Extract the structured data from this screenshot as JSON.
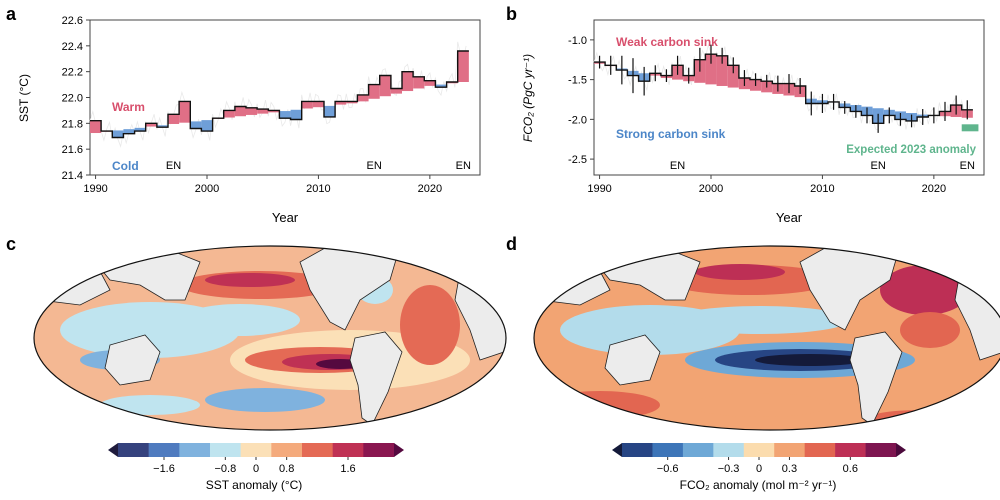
{
  "colors": {
    "warm": "#e06f86",
    "cold": "#6f9fd8",
    "step": "#111111",
    "noise": "#e9e9e9",
    "warm_text": "#d84f6c",
    "cold_text": "#4c86c8",
    "expected": "#5fb58d",
    "land": "#ececec",
    "ocean_blank": "#ffffff",
    "sst_colorbar": [
      "#1f1b3d",
      "#35427e",
      "#4f7bbf",
      "#7fb2de",
      "#bfe4ef",
      "#fbe0b7",
      "#f4aa7c",
      "#e46a55",
      "#bf3154",
      "#8a1650",
      "#55093f"
    ],
    "fco2_colorbar": [
      "#141a3a",
      "#274584",
      "#3d75b8",
      "#6ea8d6",
      "#b3dceb",
      "#fbdcae",
      "#f2a473",
      "#e26651",
      "#bd2f55",
      "#7e1550",
      "#4b0a3c"
    ]
  },
  "chart_data": [
    {
      "panel": "a",
      "type": "bar",
      "ylabel": "SST (°C)",
      "xlabel": "Year",
      "ylim": [
        21.4,
        22.6
      ],
      "yticks": [
        "21.4",
        "21.6",
        "21.8",
        "22.0",
        "22.2",
        "22.4",
        "22.6"
      ],
      "xlim": [
        1989.5,
        2024.5
      ],
      "xticks": [
        "1990",
        "2000",
        "2010",
        "2020"
      ],
      "annotations": {
        "warm": "Warm",
        "cold": "Cold",
        "el_nino": "EN",
        "el_nino_years": [
          1997,
          2015,
          2023
        ]
      },
      "x": [
        1990,
        1991,
        1992,
        1993,
        1994,
        1995,
        1996,
        1997,
        1998,
        1999,
        2000,
        2001,
        2002,
        2003,
        2004,
        2005,
        2006,
        2007,
        2008,
        2009,
        2010,
        2011,
        2012,
        2013,
        2014,
        2015,
        2016,
        2017,
        2018,
        2019,
        2020,
        2021,
        2022,
        2023
      ],
      "values": [
        21.82,
        21.74,
        21.69,
        21.72,
        21.74,
        21.8,
        21.77,
        21.87,
        21.97,
        21.76,
        21.74,
        21.84,
        21.9,
        21.93,
        21.92,
        21.91,
        21.9,
        21.84,
        21.83,
        21.97,
        21.97,
        21.85,
        21.97,
        21.97,
        22.02,
        22.1,
        22.17,
        22.07,
        22.2,
        22.16,
        22.13,
        22.08,
        22.12,
        22.36
      ],
      "baseline": [
        21.725,
        21.735,
        21.745,
        21.755,
        21.765,
        21.775,
        21.785,
        21.795,
        21.805,
        21.815,
        21.825,
        21.835,
        21.845,
        21.855,
        21.865,
        21.875,
        21.885,
        21.895,
        21.905,
        21.915,
        21.925,
        21.935,
        21.945,
        21.955,
        21.97,
        21.99,
        22.01,
        22.03,
        22.05,
        22.07,
        22.09,
        22.1,
        22.11,
        22.12
      ]
    },
    {
      "panel": "b",
      "type": "bar",
      "ylabel": "FCO₂ (PgC yr⁻¹)",
      "xlabel": "Year",
      "ylim": [
        -2.7,
        -0.75
      ],
      "yticks": [
        "-2.5",
        "-2.0",
        "-1.5",
        "-1.0"
      ],
      "xlim": [
        1989.5,
        2024.5
      ],
      "xticks": [
        "1990",
        "2000",
        "2010",
        "2020"
      ],
      "annotations": {
        "weak": "Weak carbon sink",
        "strong": "Strong carbon sink",
        "expected": "Expected 2023 anomaly",
        "el_nino": "EN",
        "el_nino_years": [
          1997,
          2015,
          2023
        ]
      },
      "x": [
        1990,
        1991,
        1992,
        1993,
        1994,
        1995,
        1996,
        1997,
        1998,
        1999,
        2000,
        2001,
        2002,
        2003,
        2004,
        2005,
        2006,
        2007,
        2008,
        2009,
        2010,
        2011,
        2012,
        2013,
        2014,
        2015,
        2016,
        2017,
        2018,
        2019,
        2020,
        2021,
        2022,
        2023
      ],
      "values": [
        -1.28,
        -1.32,
        -1.38,
        -1.45,
        -1.52,
        -1.42,
        -1.45,
        -1.32,
        -1.45,
        -1.25,
        -1.18,
        -1.2,
        -1.32,
        -1.48,
        -1.5,
        -1.52,
        -1.55,
        -1.55,
        -1.58,
        -1.8,
        -1.8,
        -1.78,
        -1.85,
        -1.9,
        -1.95,
        -2.05,
        -1.95,
        -2.0,
        -2.02,
        -1.97,
        -1.95,
        -1.9,
        -1.82,
        -1.88
      ],
      "err": [
        0.08,
        0.12,
        0.18,
        0.22,
        0.18,
        0.1,
        0.08,
        0.12,
        0.1,
        0.15,
        0.12,
        0.1,
        0.1,
        0.1,
        0.08,
        0.08,
        0.1,
        0.12,
        0.1,
        0.15,
        0.12,
        0.1,
        0.08,
        0.08,
        0.1,
        0.12,
        0.1,
        0.08,
        0.08,
        0.1,
        0.1,
        0.12,
        0.12,
        0.12
      ],
      "baseline": [
        -1.3,
        -1.33,
        -1.36,
        -1.39,
        -1.42,
        -1.45,
        -1.48,
        -1.5,
        -1.52,
        -1.54,
        -1.56,
        -1.58,
        -1.6,
        -1.62,
        -1.64,
        -1.66,
        -1.68,
        -1.7,
        -1.72,
        -1.74,
        -1.76,
        -1.78,
        -1.8,
        -1.82,
        -1.84,
        -1.86,
        -1.88,
        -1.9,
        -1.92,
        -1.94,
        -1.95,
        -1.96,
        -1.97,
        -1.98
      ],
      "expected_2023": -2.1
    },
    {
      "panel": "c",
      "type": "heatmap",
      "colorbar_label": "SST anomaly (°C)",
      "ticks": [
        "−1.6",
        "−0.8",
        "0",
        "0.8",
        "1.6"
      ]
    },
    {
      "panel": "d",
      "type": "heatmap",
      "colorbar_label": "FCO₂ anomaly (mol m⁻² yr⁻¹)",
      "ticks": [
        "−0.6",
        "−0.3",
        "0",
        "0.3",
        "0.6"
      ]
    }
  ],
  "panels": {
    "a": "a",
    "b": "b",
    "c": "c",
    "d": "d"
  }
}
